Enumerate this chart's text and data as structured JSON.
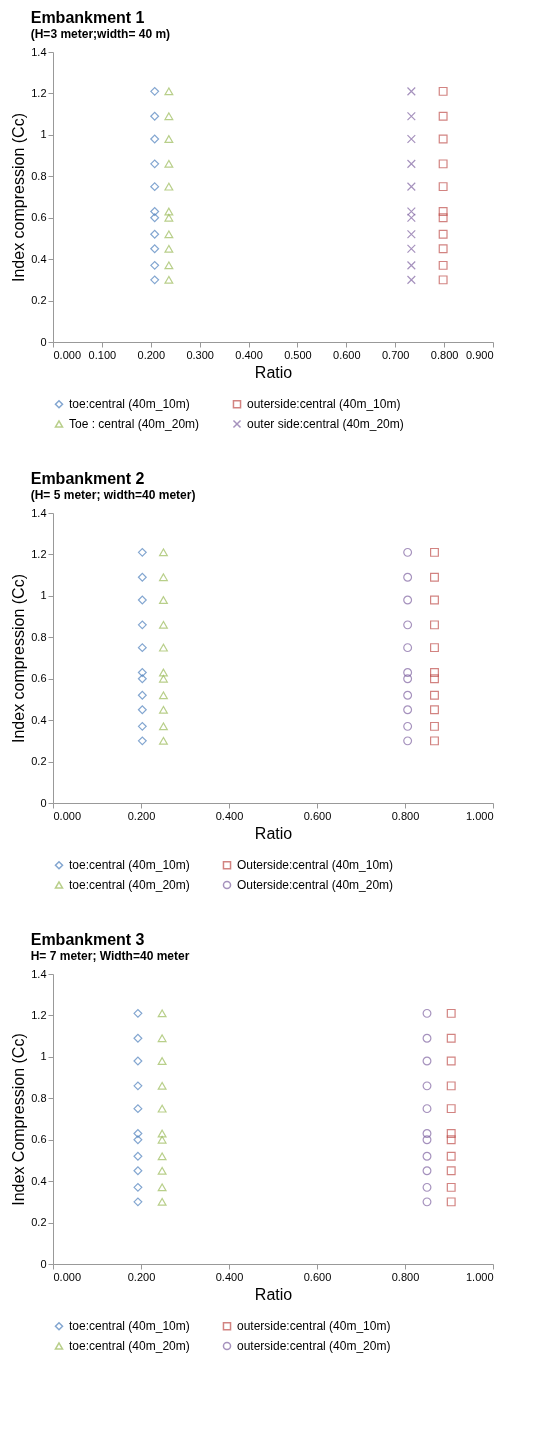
{
  "chart_data": [
    {
      "type": "scatter",
      "title": "Embankment 1",
      "subtitle": "(H=3 meter;width= 40 m)",
      "xlabel": "Ratio",
      "ylabel": "Index compression (Cc)",
      "xlim": [
        0,
        0.9
      ],
      "xticks": [
        {
          "value": 0,
          "label": "0.000"
        },
        {
          "value": 0.1,
          "label": "0.100"
        },
        {
          "value": 0.2,
          "label": "0.200"
        },
        {
          "value": 0.3,
          "label": "0.300"
        },
        {
          "value": 0.4,
          "label": "0.400"
        },
        {
          "value": 0.5,
          "label": "0.500"
        },
        {
          "value": 0.6,
          "label": "0.600"
        },
        {
          "value": 0.7,
          "label": "0.700"
        },
        {
          "value": 0.8,
          "label": "0.800"
        },
        {
          "value": 0.9,
          "label": "0.900"
        }
      ],
      "ylim": [
        0,
        1.4
      ],
      "yticks": [
        0,
        0.2,
        0.4,
        0.6,
        0.8,
        1,
        1.2,
        1.4
      ],
      "legend": "bottom",
      "series": [
        {
          "name": "toe:central (40m_10m)",
          "color": "#4f81bd",
          "marker": "diamond",
          "x": [
            0.208,
            0.208,
            0.208,
            0.208,
            0.208,
            0.208,
            0.208,
            0.208,
            0.208,
            0.208,
            0.208
          ],
          "values": [
            1.21,
            1.09,
            0.98,
            0.86,
            0.75,
            0.63,
            0.6,
            0.52,
            0.45,
            0.37,
            0.3
          ]
        },
        {
          "name": "outerside:central (40m_10m)",
          "color": "#c0504d",
          "marker": "square",
          "x": [
            0.798,
            0.798,
            0.798,
            0.798,
            0.798,
            0.798,
            0.798,
            0.798,
            0.798,
            0.798,
            0.798
          ],
          "values": [
            1.21,
            1.09,
            0.98,
            0.86,
            0.75,
            0.63,
            0.6,
            0.52,
            0.45,
            0.37,
            0.3
          ]
        },
        {
          "name": "Toe : central (40m_20m)",
          "color": "#9bbb59",
          "marker": "triangle",
          "x": [
            0.237,
            0.237,
            0.237,
            0.237,
            0.237,
            0.237,
            0.237,
            0.237,
            0.237,
            0.237,
            0.237
          ],
          "values": [
            1.21,
            1.09,
            0.98,
            0.86,
            0.75,
            0.63,
            0.6,
            0.52,
            0.45,
            0.37,
            0.3
          ]
        },
        {
          "name": "outer side:central (40m_20m)",
          "color": "#8064a2",
          "marker": "cross",
          "x": [
            0.733,
            0.733,
            0.733,
            0.733,
            0.733,
            0.733,
            0.733,
            0.733,
            0.733,
            0.733,
            0.733
          ],
          "values": [
            1.21,
            1.09,
            0.98,
            0.86,
            0.75,
            0.63,
            0.6,
            0.52,
            0.45,
            0.37,
            0.3
          ]
        }
      ]
    },
    {
      "type": "scatter",
      "title": "Embankment 2",
      "subtitle": "(H= 5 meter; width=40 meter)",
      "xlabel": "Ratio",
      "ylabel": "Index compression (Cc)",
      "xlim": [
        0,
        1
      ],
      "xticks": [
        {
          "value": 0,
          "label": "0.000"
        },
        {
          "value": 0.2,
          "label": "0.200"
        },
        {
          "value": 0.4,
          "label": "0.400"
        },
        {
          "value": 0.6,
          "label": "0.600"
        },
        {
          "value": 0.8,
          "label": "0.800"
        },
        {
          "value": 1,
          "label": "1.000"
        }
      ],
      "ylim": [
        0,
        1.4
      ],
      "yticks": [
        0,
        0.2,
        0.4,
        0.6,
        0.8,
        1,
        1.2,
        1.4
      ],
      "legend": "bottom",
      "series": [
        {
          "name": "toe:central (40m_10m)",
          "color": "#4f81bd",
          "marker": "diamond",
          "x": [
            0.203,
            0.203,
            0.203,
            0.203,
            0.203,
            0.203,
            0.203,
            0.203,
            0.203,
            0.203,
            0.203
          ],
          "values": [
            1.21,
            1.09,
            0.98,
            0.86,
            0.75,
            0.63,
            0.6,
            0.52,
            0.45,
            0.37,
            0.3
          ]
        },
        {
          "name": "Outerside:central (40m_10m)",
          "color": "#c0504d",
          "marker": "square",
          "x": [
            0.867,
            0.867,
            0.867,
            0.867,
            0.867,
            0.867,
            0.867,
            0.867,
            0.867,
            0.867,
            0.867
          ],
          "values": [
            1.21,
            1.09,
            0.98,
            0.86,
            0.75,
            0.63,
            0.6,
            0.52,
            0.45,
            0.37,
            0.3
          ]
        },
        {
          "name": "toe:central (40m_20m)",
          "color": "#9bbb59",
          "marker": "triangle",
          "x": [
            0.251,
            0.251,
            0.251,
            0.251,
            0.251,
            0.251,
            0.251,
            0.251,
            0.251,
            0.251,
            0.251
          ],
          "values": [
            1.21,
            1.09,
            0.98,
            0.86,
            0.75,
            0.63,
            0.6,
            0.52,
            0.45,
            0.37,
            0.3
          ]
        },
        {
          "name": "Outerside:central (40m_20m)",
          "color": "#8064a2",
          "marker": "circle",
          "x": [
            0.806,
            0.806,
            0.806,
            0.806,
            0.806,
            0.806,
            0.806,
            0.806,
            0.806,
            0.806,
            0.806
          ],
          "values": [
            1.21,
            1.09,
            0.98,
            0.86,
            0.75,
            0.63,
            0.6,
            0.52,
            0.45,
            0.37,
            0.3
          ]
        }
      ]
    },
    {
      "type": "scatter",
      "title": "Embankment 3",
      "subtitle": "H= 7 meter; Width=40 meter",
      "xlabel": "Ratio",
      "ylabel": "Index Compression (Cc)",
      "xlim": [
        0,
        1
      ],
      "xticks": [
        {
          "value": 0,
          "label": "0.000"
        },
        {
          "value": 0.2,
          "label": "0.200"
        },
        {
          "value": 0.4,
          "label": "0.400"
        },
        {
          "value": 0.6,
          "label": "0.600"
        },
        {
          "value": 0.8,
          "label": "0.800"
        },
        {
          "value": 1,
          "label": "1.000"
        }
      ],
      "ylim": [
        0,
        1.4
      ],
      "yticks": [
        0,
        0.2,
        0.4,
        0.6,
        0.8,
        1,
        1.2,
        1.4
      ],
      "legend": "bottom",
      "series": [
        {
          "name": "toe:central (40m_10m)",
          "color": "#4f81bd",
          "marker": "diamond",
          "x": [
            0.193,
            0.193,
            0.193,
            0.193,
            0.193,
            0.193,
            0.193,
            0.193,
            0.193,
            0.193,
            0.193
          ],
          "values": [
            1.21,
            1.09,
            0.98,
            0.86,
            0.75,
            0.63,
            0.6,
            0.52,
            0.45,
            0.37,
            0.3
          ]
        },
        {
          "name": "outerside:central (40m_10m)",
          "color": "#c0504d",
          "marker": "square",
          "x": [
            0.905,
            0.905,
            0.905,
            0.905,
            0.905,
            0.905,
            0.905,
            0.905,
            0.905,
            0.905,
            0.905
          ],
          "values": [
            1.21,
            1.09,
            0.98,
            0.86,
            0.75,
            0.63,
            0.6,
            0.52,
            0.45,
            0.37,
            0.3
          ]
        },
        {
          "name": "toe:central (40m_20m)",
          "color": "#9bbb59",
          "marker": "triangle",
          "x": [
            0.248,
            0.248,
            0.248,
            0.248,
            0.248,
            0.248,
            0.248,
            0.248,
            0.248,
            0.248,
            0.248
          ],
          "values": [
            1.21,
            1.09,
            0.98,
            0.86,
            0.75,
            0.63,
            0.6,
            0.52,
            0.45,
            0.37,
            0.3
          ]
        },
        {
          "name": "outerside:central (40m_20m)",
          "color": "#8064a2",
          "marker": "circle",
          "x": [
            0.85,
            0.85,
            0.85,
            0.85,
            0.85,
            0.85,
            0.85,
            0.85,
            0.85,
            0.85,
            0.85
          ],
          "values": [
            1.21,
            1.09,
            0.98,
            0.86,
            0.75,
            0.63,
            0.6,
            0.52,
            0.45,
            0.37,
            0.3
          ]
        }
      ]
    }
  ]
}
